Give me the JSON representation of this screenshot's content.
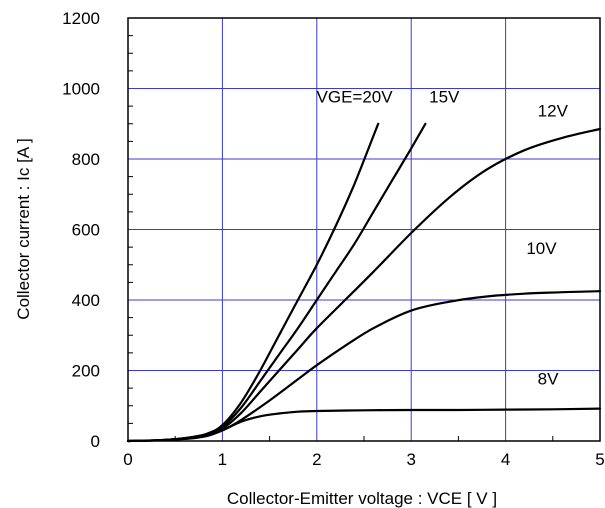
{
  "chart_data": {
    "type": "line",
    "title": "",
    "xlabel": "Collector-Emitter voltage : VCE [ V ]",
    "ylabel": "Collector current : Ic  [A ]",
    "xlim": [
      0,
      5
    ],
    "ylim": [
      0,
      1200
    ],
    "x_ticks": [
      "0",
      "1",
      "2",
      "3",
      "4",
      "5"
    ],
    "y_ticks": [
      "0",
      "200",
      "400",
      "600",
      "800",
      "1000",
      "1200"
    ],
    "grid": true,
    "grid_color": "#3a3ad6",
    "line_color": "#000000",
    "series": [
      {
        "name": "VGE=20V",
        "x": [
          0,
          0.3,
          0.5,
          0.7,
          0.85,
          1.0,
          1.2,
          1.4,
          1.6,
          1.8,
          2.0,
          2.2,
          2.4,
          2.65
        ],
        "y": [
          0,
          2,
          5,
          12,
          22,
          45,
          110,
          200,
          300,
          400,
          500,
          610,
          730,
          900
        ]
      },
      {
        "name": "15V",
        "x": [
          0,
          0.3,
          0.5,
          0.7,
          0.85,
          1.0,
          1.2,
          1.4,
          1.6,
          1.8,
          2.0,
          2.2,
          2.4,
          2.6,
          2.8,
          3.0,
          3.15
        ],
        "y": [
          0,
          2,
          5,
          12,
          20,
          40,
          95,
          170,
          245,
          320,
          400,
          480,
          560,
          650,
          740,
          830,
          900
        ]
      },
      {
        "name": "12V",
        "x": [
          0,
          0.3,
          0.5,
          0.7,
          0.85,
          1.0,
          1.2,
          1.4,
          1.6,
          1.8,
          2.0,
          2.3,
          2.6,
          3.0,
          3.4,
          3.8,
          4.2,
          4.6,
          5.0
        ],
        "y": [
          0,
          2,
          5,
          12,
          20,
          35,
          80,
          140,
          200,
          260,
          320,
          400,
          480,
          590,
          690,
          770,
          825,
          860,
          885
        ]
      },
      {
        "name": "10V",
        "x": [
          0,
          0.3,
          0.5,
          0.7,
          0.85,
          1.0,
          1.2,
          1.5,
          1.8,
          2.0,
          2.3,
          2.6,
          3.0,
          3.4,
          3.8,
          4.2,
          4.6,
          5.0
        ],
        "y": [
          0,
          2,
          5,
          10,
          18,
          30,
          60,
          115,
          175,
          215,
          270,
          320,
          370,
          395,
          410,
          418,
          422,
          425
        ]
      },
      {
        "name": "8V",
        "x": [
          0,
          0.3,
          0.5,
          0.7,
          0.85,
          1.0,
          1.2,
          1.4,
          1.6,
          1.8,
          2.0,
          2.5,
          3.0,
          3.5,
          4.0,
          4.5,
          5.0
        ],
        "y": [
          0,
          2,
          4,
          8,
          15,
          30,
          55,
          70,
          78,
          83,
          85,
          87,
          88,
          88,
          89,
          90,
          92
        ]
      }
    ],
    "annotations": [
      {
        "text": "VGE=20V",
        "x": 2.4,
        "y": 960
      },
      {
        "text": "15V",
        "x": 3.35,
        "y": 960
      },
      {
        "text": "12V",
        "x": 4.5,
        "y": 920
      },
      {
        "text": "10V",
        "x": 4.38,
        "y": 530
      },
      {
        "text": "8V",
        "x": 4.45,
        "y": 160
      }
    ]
  }
}
